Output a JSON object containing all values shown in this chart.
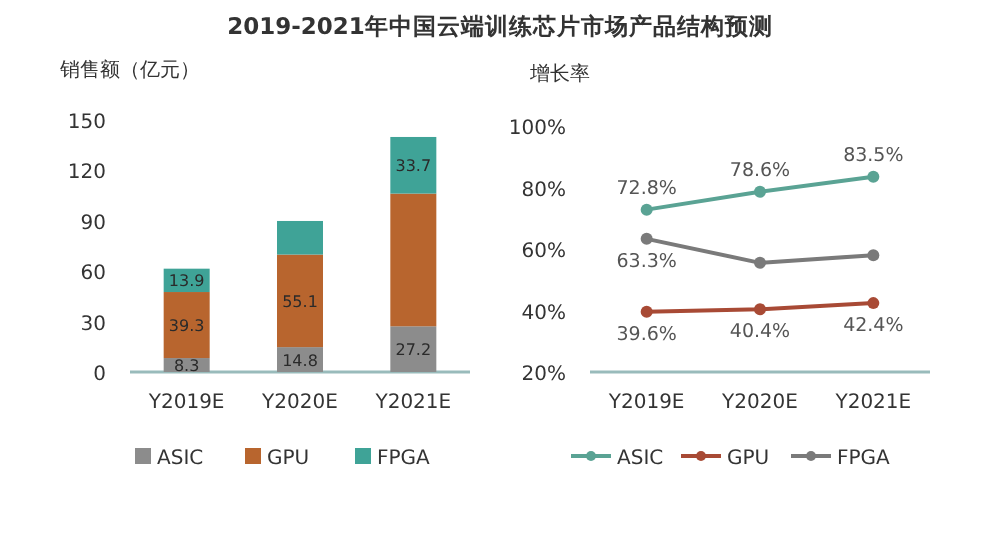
{
  "chart_data": [
    {
      "type": "bar",
      "title": "2019-2021年中国云端训练芯片市场产品结构预测",
      "ylabel": "销售额（亿元）",
      "categories": [
        "Y2019E",
        "Y2020E",
        "Y2021E"
      ],
      "stacked": true,
      "ylim": [
        0,
        150
      ],
      "yticks": [
        0,
        30,
        60,
        90,
        120,
        150
      ],
      "grid": false,
      "legend": "bottom",
      "series": [
        {
          "name": "ASIC",
          "color": "#8c8c8c",
          "values": [
            8.3,
            14.8,
            27.2
          ],
          "value_labels": [
            "8.3",
            "14.8",
            "27.2"
          ]
        },
        {
          "name": "GPU",
          "color": "#b8652e",
          "values": [
            39.3,
            55.1,
            79
          ],
          "value_labels": [
            "39.3",
            "55.1",
            null
          ]
        },
        {
          "name": "FPGA",
          "color": "#3fa397",
          "values": [
            13.9,
            20,
            33.7
          ],
          "value_labels": [
            "13.9",
            null,
            "33.7"
          ]
        }
      ]
    },
    {
      "type": "line",
      "ylabel": "增长率",
      "categories": [
        "Y2019E",
        "Y2020E",
        "Y2021E"
      ],
      "ylim": [
        20,
        100
      ],
      "yticks": [
        {
          "value": 20,
          "label": "20%"
        },
        {
          "value": 40,
          "label": "40%"
        },
        {
          "value": 60,
          "label": "60%"
        },
        {
          "value": 80,
          "label": "80%"
        },
        {
          "value": 100,
          "label": "100%"
        }
      ],
      "grid": false,
      "legend": "bottom",
      "marker": "circle",
      "series": [
        {
          "name": "ASIC",
          "color": "#5aa394",
          "values": [
            72.8,
            78.6,
            83.5
          ],
          "value_labels": [
            "72.8%",
            "78.6%",
            "83.5%"
          ]
        },
        {
          "name": "GPU",
          "color": "#a84a35",
          "values": [
            39.6,
            40.4,
            42.4
          ],
          "value_labels": [
            "39.6%",
            "40.4%",
            "42.4%"
          ]
        },
        {
          "name": "FPGA",
          "color": "#7a7a7a",
          "values": [
            63.3,
            55.5,
            58.0
          ],
          "value_labels": [
            "63.3%",
            null,
            null
          ]
        }
      ]
    }
  ]
}
